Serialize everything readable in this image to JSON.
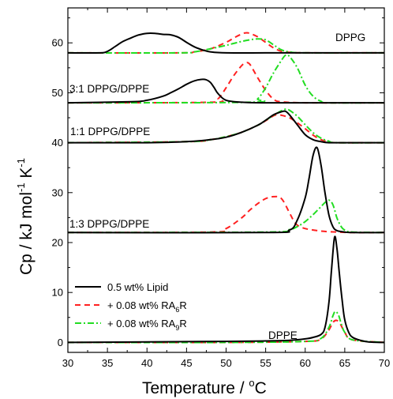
{
  "chart_data": {
    "type": "line",
    "xlabel": "Temperature / °C",
    "ylabel": "Cp / kJ mol-1 K-1",
    "xlim": [
      30,
      70
    ],
    "ylim": [
      -2,
      67
    ],
    "xticks": [
      30,
      35,
      40,
      45,
      50,
      55,
      60,
      65,
      70
    ],
    "yticks": [
      0,
      10,
      20,
      30,
      40,
      50,
      60
    ],
    "grid": false,
    "legend_position": "bottom-left",
    "annotations": [
      "DPPG",
      "3:1 DPPG/DPPE",
      "1:1 DPPG/DPPE",
      "1:3 DPPG/DPPE",
      "DPPE"
    ],
    "series": [
      {
        "name": "0.5 wt% Lipid",
        "color": "#000000",
        "dash": "solid",
        "curves": [
          {
            "sample": "DPPG",
            "x": [
              30,
              34,
              35,
              36,
              37,
              38,
              39,
              40,
              41,
              42,
              43,
              44,
              45,
              46,
              47,
              48,
              50,
              55,
              60,
              65,
              70
            ],
            "y": [
              58,
              58,
              58.3,
              59.3,
              60.3,
              61,
              61.6,
              61.9,
              61.9,
              61.7,
              61.6,
              61.1,
              60.1,
              59.2,
              58.6,
              58.2,
              58,
              58,
              58,
              58,
              58
            ]
          },
          {
            "sample": "3:1 DPPG/DPPE",
            "x": [
              30,
              38,
              40,
              42,
              43,
              44,
              45,
              46,
              47,
              47.5,
              48,
              48.5,
              49,
              50,
              52,
              55,
              60,
              65,
              70
            ],
            "y": [
              48,
              48.2,
              48.5,
              49.3,
              50,
              50.8,
              51.7,
              52.4,
              52.7,
              52.6,
              52.1,
              51,
              49.8,
              48.5,
              48.1,
              48,
              48,
              48,
              48
            ]
          },
          {
            "sample": "1:1 DPPG/DPPE",
            "x": [
              30,
              40,
              45,
              48,
              50,
              52,
              54,
              55,
              56,
              57,
              57.5,
              58,
              59,
              60,
              61,
              62,
              63,
              65,
              70
            ],
            "y": [
              40,
              40,
              40.2,
              40.6,
              41.1,
              42.1,
              43.5,
              44.5,
              45.6,
              46.2,
              46.3,
              45.6,
              43.6,
              41.6,
              40.6,
              40.2,
              40,
              40,
              40
            ]
          },
          {
            "sample": "1:3 DPPG/DPPE",
            "x": [
              30,
              55,
              58,
              59,
              60,
              60.5,
              61,
              61.5,
              62,
              62.5,
              63,
              63.5,
              64,
              65,
              66,
              70
            ],
            "y": [
              22,
              22,
              22.5,
              24.5,
              29,
              33,
              37.5,
              39,
              35.5,
              30,
              25.5,
              23.2,
              22.4,
              22.1,
              22,
              22
            ]
          },
          {
            "sample": "DPPE",
            "x": [
              30,
              40,
              50,
              55,
              58,
              60,
              61,
              62,
              62.5,
              63,
              63.3,
              63.7,
              64,
              64.3,
              64.7,
              65,
              65.5,
              66,
              67,
              68,
              70
            ],
            "y": [
              0,
              0.1,
              0.2,
              0.3,
              0.4,
              0.7,
              1,
              1.6,
              3,
              8,
              14,
              21,
              19,
              14,
              8,
              4.5,
              2,
              1,
              0.4,
              0.1,
              0
            ]
          }
        ]
      },
      {
        "name": "+ 0.08 wt% RA6R",
        "color": "#ff2020",
        "dash": "dashed",
        "curves": [
          {
            "sample": "DPPG",
            "x": [
              30,
              44,
              46,
              48,
              50,
              51,
              52,
              52.5,
              53,
              54,
              55,
              56,
              57,
              58,
              60,
              70
            ],
            "y": [
              58,
              58,
              58.2,
              58.8,
              60.1,
              61,
              61.8,
              62,
              61.9,
              61.2,
              60.1,
              59,
              58.3,
              58.1,
              58,
              58
            ]
          },
          {
            "sample": "3:1 DPPG/DPPE",
            "x": [
              30,
              48,
              49,
              50,
              51,
              52,
              52.5,
              53,
              54,
              55,
              56,
              57,
              60,
              70
            ],
            "y": [
              48,
              48.1,
              48.8,
              51,
              53.5,
              55.5,
              56,
              55.7,
              53,
              50.5,
              48.7,
              48.2,
              48,
              48
            ]
          },
          {
            "sample": "1:1 DPPG/DPPE",
            "x": [
              30,
              45,
              48,
              50,
              52,
              54,
              55,
              56,
              56.5,
              57,
              58,
              59,
              60,
              61,
              62,
              63,
              64,
              70
            ],
            "y": [
              40,
              40.2,
              40.6,
              41.2,
              42.1,
              43.5,
              44.4,
              45.4,
              45.6,
              45.5,
              45,
              44,
              42.8,
              41.5,
              40.6,
              40.2,
              40,
              40
            ]
          },
          {
            "sample": "1:3 DPPG/DPPE",
            "x": [
              30,
              48,
              50,
              52,
              53,
              54,
              55,
              56,
              57,
              58,
              58.5,
              59,
              60,
              62,
              64,
              66,
              70
            ],
            "y": [
              22,
              22.1,
              22.8,
              25,
              26.5,
              27.8,
              28.8,
              29.2,
              28.8,
              26,
              24.5,
              23.5,
              22.8,
              22.3,
              22.1,
              22,
              22
            ]
          },
          {
            "sample": "DPPE",
            "x": [
              30,
              50,
              60,
              62,
              63,
              63.5,
              64,
              64.5,
              65,
              66,
              70
            ],
            "y": [
              0,
              0,
              0.2,
              0.7,
              2.5,
              4,
              4.4,
              3.5,
              2,
              0.5,
              0
            ]
          }
        ]
      },
      {
        "name": "+ 0.08 wt% RA9R",
        "color": "#22dd22",
        "dash": "dashdot",
        "curves": [
          {
            "sample": "DPPG",
            "x": [
              30,
              44,
              46,
              48,
              50,
              51,
              52,
              53,
              54,
              55,
              56,
              57,
              58,
              60,
              70
            ],
            "y": [
              58,
              58,
              58.2,
              58.8,
              59.5,
              59.9,
              60.3,
              60.6,
              60.8,
              60.6,
              59.6,
              58.6,
              58.2,
              58,
              58
            ]
          },
          {
            "sample": "3:1 DPPG/DPPE",
            "x": [
              30,
              53,
              54,
              55,
              56,
              57,
              57.5,
              58,
              59,
              60,
              61,
              62,
              63,
              70
            ],
            "y": [
              48,
              48.1,
              48.8,
              51,
              54,
              56.5,
              57.5,
              57.3,
              55,
              51.5,
              49.3,
              48.3,
              48,
              48
            ]
          },
          {
            "sample": "1:1 DPPG/DPPE",
            "x": [
              30,
              45,
              48,
              50,
              52,
              54,
              55,
              56,
              57,
              57.5,
              58,
              59,
              60,
              61,
              62,
              63,
              64,
              70
            ],
            "y": [
              40,
              40.2,
              40.6,
              41.2,
              42.1,
              43.5,
              44.5,
              45.5,
              46.4,
              46.7,
              46.5,
              45.3,
              43.6,
              42,
              40.9,
              40.3,
              40,
              40
            ]
          },
          {
            "sample": "1:3 DPPG/DPPE",
            "x": [
              30,
              55,
              58,
              59,
              60,
              61,
              62,
              62.5,
              63,
              63.5,
              64,
              64.5,
              65,
              66,
              70
            ],
            "y": [
              22,
              22.1,
              22.6,
              23.2,
              24.2,
              25.6,
              27.2,
              28,
              28.5,
              27.6,
              25,
              23.3,
              22.5,
              22.1,
              22
            ]
          },
          {
            "sample": "DPPE",
            "x": [
              30,
              50,
              60,
              62,
              63,
              63.5,
              63.8,
              64.2,
              64.6,
              65,
              66,
              70
            ],
            "y": [
              0,
              0,
              0.2,
              0.8,
              3,
              5.3,
              6.2,
              5.5,
              3.5,
              2,
              0.5,
              0
            ]
          }
        ]
      }
    ]
  },
  "legend": {
    "entries": [
      {
        "text": "0.5 wt% Lipid",
        "sub": ""
      },
      {
        "text": "+ 0.08 wt% RA",
        "sub": "6",
        "suffix": "R"
      },
      {
        "text": "+ 0.08 wt% RA",
        "sub": "9",
        "suffix": "R"
      }
    ]
  },
  "annotations": {
    "dppg": "DPPG",
    "mix31": "3:1 DPPG/DPPE",
    "mix11": "1:1 DPPG/DPPE",
    "mix13": "1:3 DPPG/DPPE",
    "dppe": "DPPE"
  },
  "axes": {
    "xlabel_main": "Temperature / ",
    "xlabel_unit": "C",
    "xlabel_degree": "o",
    "ylabel_main": "Cp / kJ mol",
    "ylabel_exp1": "-1",
    "ylabel_mid": " K",
    "ylabel_exp2": "-1"
  }
}
